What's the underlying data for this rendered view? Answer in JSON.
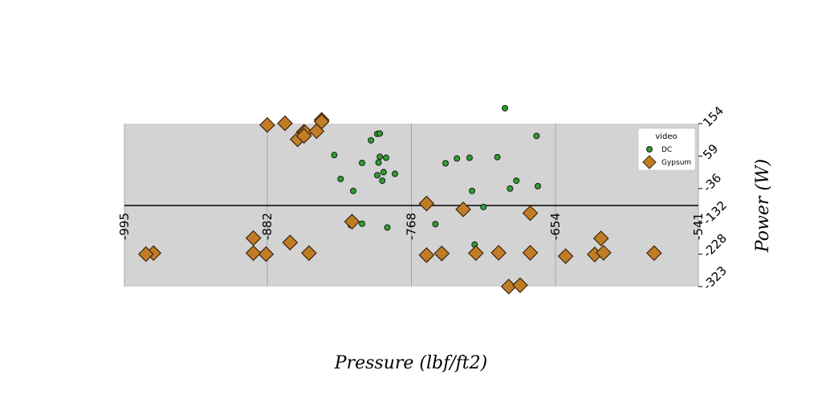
{
  "chart_data": {
    "type": "scatter",
    "xlabel": "Pressure (lbf/ft2)",
    "ylabel": "Power (W)",
    "xlim": [
      -995,
      -541
    ],
    "ylim": [
      -323,
      154
    ],
    "x_reversed": true,
    "x_ticks": [
      "-995",
      "-882",
      "-768",
      "-654",
      "-541"
    ],
    "y_ticks": [
      "154",
      "59",
      "-36",
      "-132",
      "-228",
      "-323"
    ],
    "grid": true,
    "legend": {
      "title": "video",
      "position": "top-right"
    },
    "series": [
      {
        "name": "DC",
        "marker": "circle",
        "color": "#2ca02c",
        "points": [
          [
            -800,
            105
          ],
          [
            -795,
            124
          ],
          [
            -793,
            125
          ],
          [
            -793,
            57
          ],
          [
            -829,
            62
          ],
          [
            -788,
            54
          ],
          [
            -781,
            7
          ],
          [
            -795,
            3
          ],
          [
            -794,
            40
          ],
          [
            -790,
            12
          ],
          [
            -807,
            39
          ],
          [
            -791,
            -13
          ],
          [
            -824,
            -8
          ],
          [
            -814,
            -43
          ],
          [
            -807,
            -139
          ],
          [
            -732,
            52
          ],
          [
            -749,
            -140
          ],
          [
            -718,
            -200
          ],
          [
            -816,
            -143
          ],
          [
            -720,
            -43
          ],
          [
            -711,
            -90
          ],
          [
            -700,
            56
          ],
          [
            -741,
            38
          ],
          [
            -722,
            54
          ],
          [
            -787,
            -150
          ],
          [
            -685,
            -13
          ],
          [
            -668,
            -29
          ],
          [
            -669,
            118
          ],
          [
            -694,
            199
          ],
          [
            -690,
            -36
          ]
        ]
      },
      {
        "name": "Gypsum",
        "marker": "diamond",
        "color": "#c17d26",
        "points": [
          [
            -882,
            150
          ],
          [
            -868,
            155
          ],
          [
            -853,
            130
          ],
          [
            -852,
            128
          ],
          [
            -843,
            132
          ],
          [
            -858,
            108
          ],
          [
            -853,
            118
          ],
          [
            -839,
            165
          ],
          [
            -815,
            -133
          ],
          [
            -839,
            160
          ],
          [
            -849,
            -225
          ],
          [
            -864,
            -194
          ],
          [
            -883,
            -228
          ],
          [
            -893,
            -181
          ],
          [
            -893,
            -225
          ],
          [
            -972,
            -225
          ],
          [
            -978,
            -228
          ],
          [
            -756,
            -231
          ],
          [
            -717,
            -225
          ],
          [
            -699,
            -224
          ],
          [
            -674,
            -224
          ],
          [
            -744,
            -226
          ],
          [
            -691,
            -323
          ],
          [
            -756,
            -80
          ],
          [
            -727,
            -97
          ],
          [
            -682,
            -319
          ],
          [
            -674,
            -108
          ],
          [
            -576,
            -225
          ],
          [
            -618,
            -182
          ],
          [
            -646,
            -234
          ],
          [
            -623,
            -229
          ],
          [
            -616,
            -224
          ]
        ]
      }
    ]
  }
}
